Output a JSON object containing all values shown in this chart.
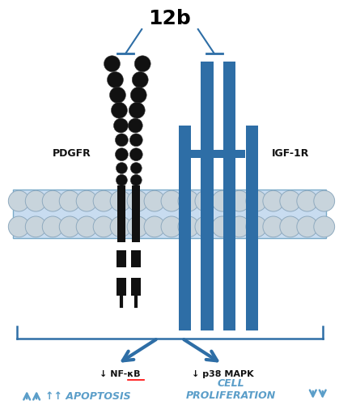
{
  "title": "12b",
  "bg_color": "#ffffff",
  "blue_color": "#2E6EA6",
  "light_blue": "#5B9EC9",
  "black_color": "#111111",
  "membrane_color": "#C8DCF0",
  "membrane_border": "#7AAAC8",
  "circle_fill": "#C8D4DC",
  "circle_edge": "#8FAABF",
  "pdgfr_label": "PDGFR",
  "igfr_label": "IGF-1R",
  "nfkb_label": "↓ NF-κB",
  "p38_label": "↓ p38 MAPK",
  "apoptosis_label": "↑↑ APOPTOSIS",
  "proliferation_label": "CELL\nPROLIFERATION"
}
